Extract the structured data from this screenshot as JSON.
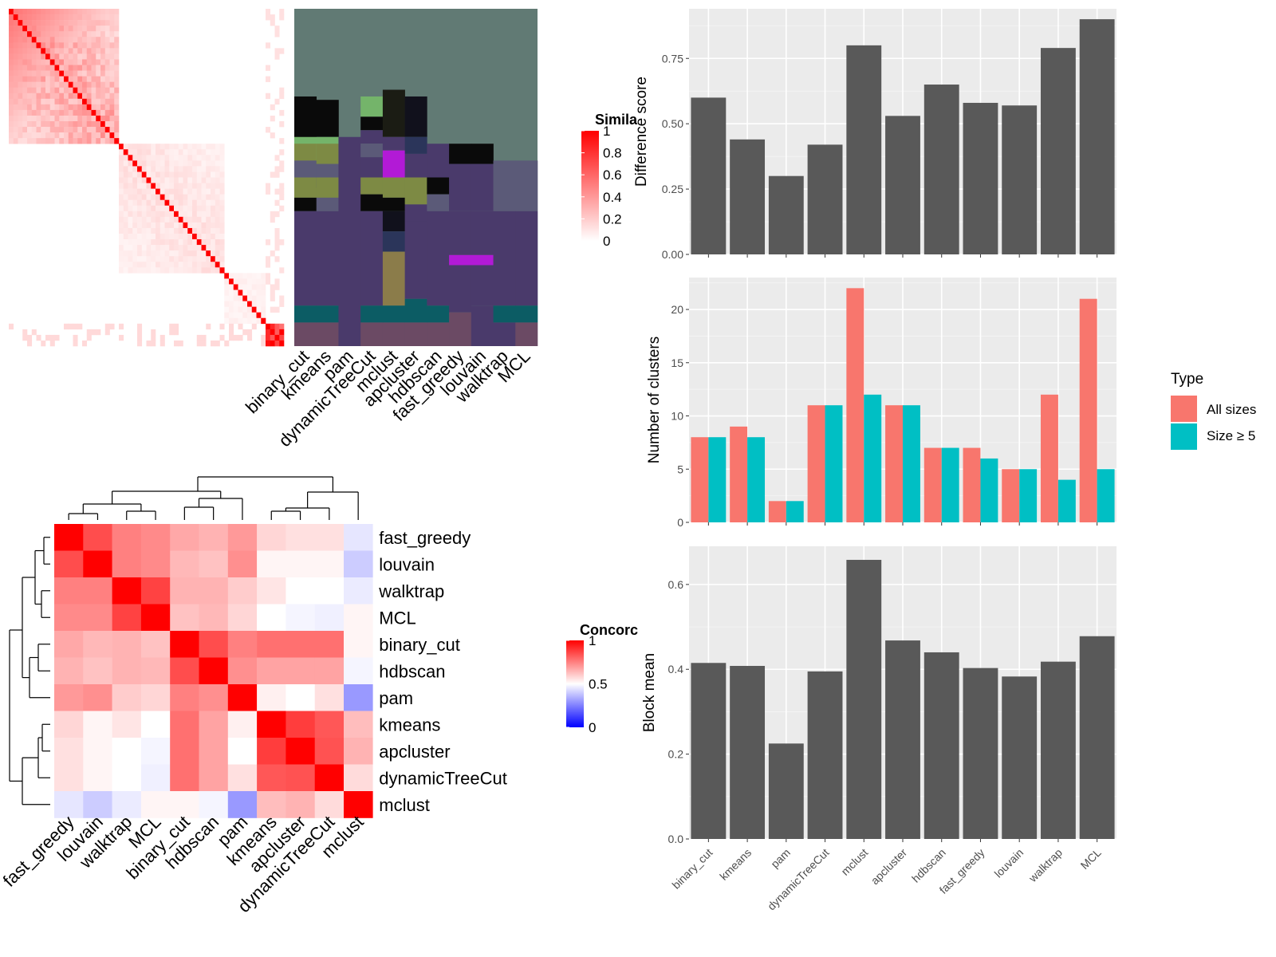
{
  "colors": {
    "bar_gray": "#595959",
    "panel_bg": "#ebebeb",
    "all_sizes": "#f8766d",
    "size_ge5": "#00bfc4",
    "heat_high": "#ff0000",
    "heat_mid": "#ffffff",
    "heat_low": "#0000ff"
  },
  "similarity_legend": {
    "title": "Simila",
    "ticks": [
      "1",
      "0.8",
      "0.6",
      "0.4",
      "0.2",
      "0"
    ]
  },
  "concordance_legend": {
    "title": "Concorc",
    "ticks": [
      "1",
      "0.5",
      "0"
    ]
  },
  "type_legend": {
    "title": "Type",
    "items": [
      "All sizes",
      "Size ≥ 5"
    ]
  },
  "chart_data": [
    {
      "type": "heatmap",
      "title": "",
      "description_panel": "cell-cell similarity matrix",
      "legend_title": "Simila",
      "range": [
        0,
        1
      ]
    },
    {
      "type": "heatmap",
      "title": "",
      "columns": [
        "binary_cut",
        "kmeans",
        "pam",
        "dynamicTreeCut",
        "mclust",
        "apcluster",
        "hdbscan",
        "fast_greedy",
        "louvain",
        "walktrap",
        "MCL"
      ]
    },
    {
      "type": "heatmap",
      "title": "",
      "rows": [
        "fast_greedy",
        "louvain",
        "walktrap",
        "MCL",
        "binary_cut",
        "hdbscan",
        "pam",
        "kmeans",
        "apcluster",
        "dynamicTreeCut",
        "mclust"
      ],
      "columns": [
        "fast_greedy",
        "louvain",
        "walktrap",
        "MCL",
        "binary_cut",
        "hdbscan",
        "pam",
        "kmeans",
        "apcluster",
        "dynamicTreeCut",
        "mclust"
      ],
      "values": [
        [
          1.0,
          0.85,
          0.75,
          0.73,
          0.67,
          0.65,
          0.7,
          0.58,
          0.56,
          0.56,
          0.45
        ],
        [
          0.85,
          1.0,
          0.75,
          0.73,
          0.64,
          0.62,
          0.72,
          0.52,
          0.52,
          0.52,
          0.4
        ],
        [
          0.75,
          0.75,
          1.0,
          0.87,
          0.65,
          0.65,
          0.6,
          0.55,
          0.5,
          0.5,
          0.46
        ],
        [
          0.73,
          0.73,
          0.87,
          1.0,
          0.62,
          0.64,
          0.58,
          0.5,
          0.48,
          0.47,
          0.52
        ],
        [
          0.67,
          0.64,
          0.65,
          0.62,
          1.0,
          0.85,
          0.75,
          0.78,
          0.78,
          0.78,
          0.52
        ],
        [
          0.65,
          0.62,
          0.65,
          0.64,
          0.85,
          1.0,
          0.72,
          0.68,
          0.68,
          0.68,
          0.48
        ],
        [
          0.7,
          0.72,
          0.6,
          0.58,
          0.75,
          0.72,
          1.0,
          0.53,
          0.5,
          0.56,
          0.3
        ],
        [
          0.58,
          0.52,
          0.55,
          0.5,
          0.78,
          0.68,
          0.53,
          1.0,
          0.88,
          0.83,
          0.63
        ],
        [
          0.56,
          0.52,
          0.5,
          0.48,
          0.78,
          0.68,
          0.5,
          0.88,
          1.0,
          0.84,
          0.65
        ],
        [
          0.56,
          0.52,
          0.5,
          0.47,
          0.78,
          0.68,
          0.56,
          0.83,
          0.84,
          1.0,
          0.57
        ],
        [
          0.45,
          0.4,
          0.46,
          0.52,
          0.52,
          0.48,
          0.3,
          0.63,
          0.65,
          0.57,
          1.0
        ]
      ],
      "legend_title": "Concorc",
      "range": [
        0,
        1
      ]
    },
    {
      "type": "bar",
      "title": "",
      "categories": [
        "binary_cut",
        "kmeans",
        "pam",
        "dynamicTreeCut",
        "mclust",
        "apcluster",
        "hdbscan",
        "fast_greedy",
        "louvain",
        "walktrap",
        "MCL"
      ],
      "values": [
        0.6,
        0.44,
        0.3,
        0.42,
        0.8,
        0.53,
        0.65,
        0.58,
        0.57,
        0.79,
        0.9
      ],
      "ylabel": "Difference score",
      "ylim": [
        0,
        0.94
      ],
      "yticks": [
        "0.00",
        "0.25",
        "0.50",
        "0.75"
      ]
    },
    {
      "type": "bar",
      "title": "",
      "categories": [
        "binary_cut",
        "kmeans",
        "pam",
        "dynamicTreeCut",
        "mclust",
        "apcluster",
        "hdbscan",
        "fast_greedy",
        "louvain",
        "walktrap",
        "MCL"
      ],
      "series": [
        {
          "name": "All sizes",
          "values": [
            8,
            9,
            2,
            11,
            22,
            11,
            7,
            7,
            5,
            12,
            21
          ]
        },
        {
          "name": "Size ≥ 5",
          "values": [
            8,
            8,
            2,
            11,
            12,
            11,
            7,
            6,
            5,
            4,
            5
          ]
        }
      ],
      "ylabel": "Number of clusters",
      "ylim": [
        0,
        23
      ],
      "yticks": [
        "0",
        "5",
        "10",
        "15",
        "20"
      ],
      "legend": "right"
    },
    {
      "type": "bar",
      "title": "",
      "categories": [
        "binary_cut",
        "kmeans",
        "pam",
        "dynamicTreeCut",
        "mclust",
        "apcluster",
        "hdbscan",
        "fast_greedy",
        "louvain",
        "walktrap",
        "MCL"
      ],
      "values": [
        0.415,
        0.408,
        0.225,
        0.395,
        0.658,
        0.468,
        0.44,
        0.403,
        0.383,
        0.418,
        0.478
      ],
      "ylabel": "Block mean",
      "ylim": [
        0,
        0.69
      ],
      "yticks": [
        "0.0",
        "0.2",
        "0.4",
        "0.6"
      ]
    }
  ]
}
